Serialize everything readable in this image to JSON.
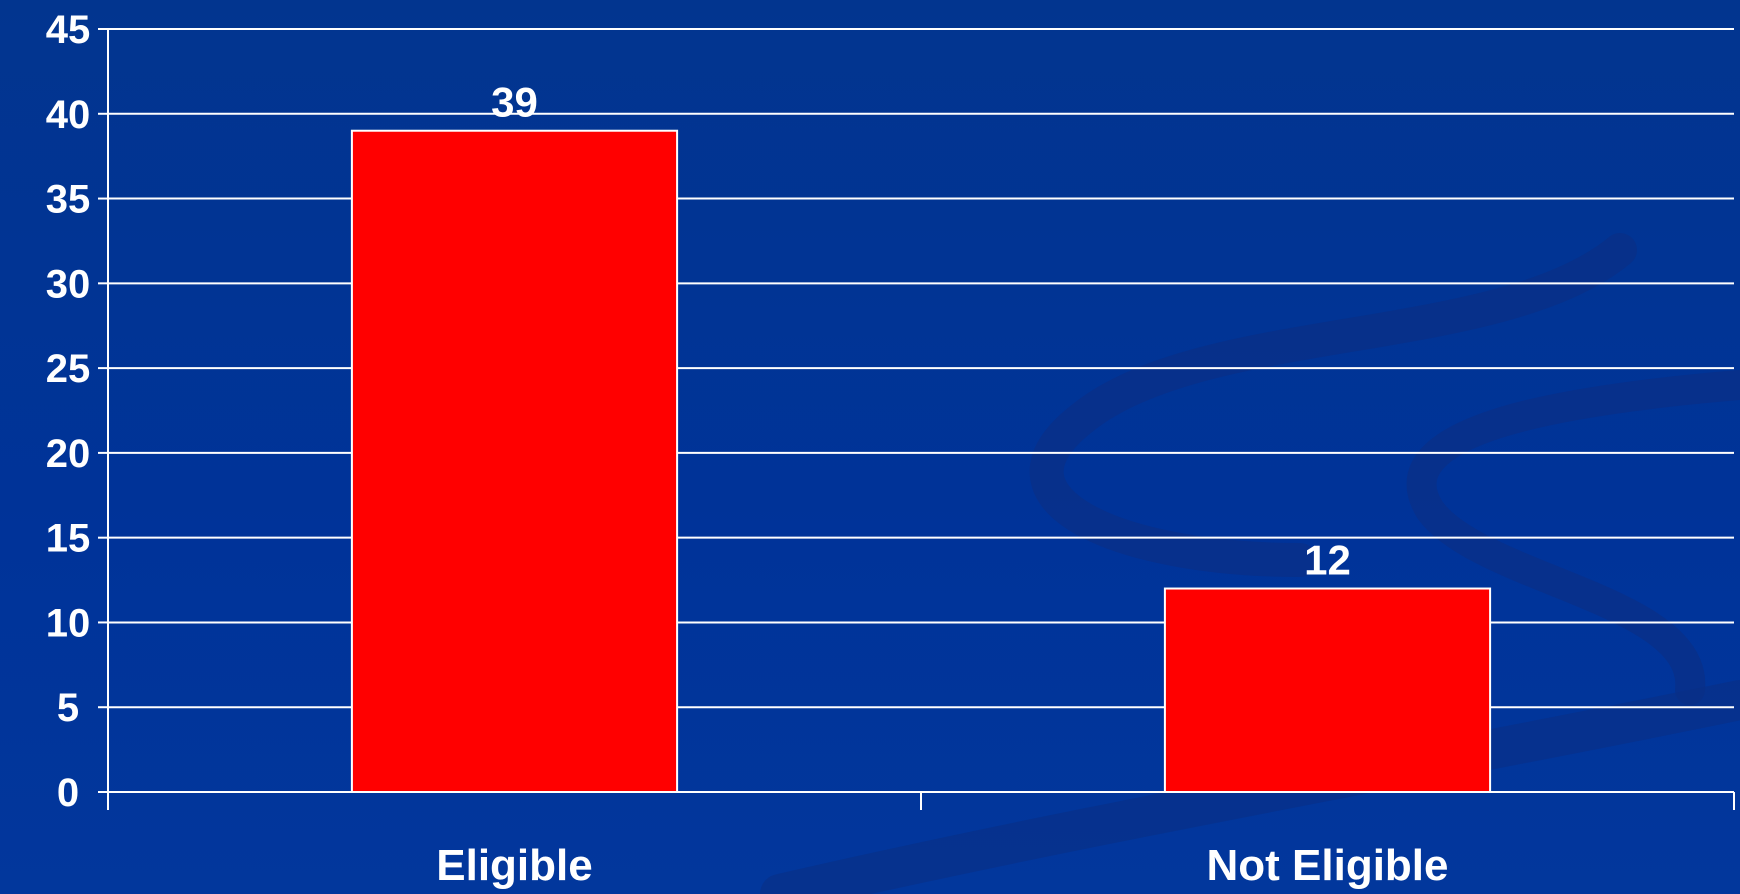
{
  "chart_data": {
    "type": "bar",
    "categories": [
      "Eligible",
      "Not Eligible"
    ],
    "values": [
      39,
      12
    ],
    "data_labels": [
      "39",
      "12"
    ],
    "title": "",
    "xlabel": "",
    "ylabel": "",
    "ylim": [
      0,
      45
    ],
    "y_ticks": [
      0,
      5,
      10,
      15,
      20,
      25,
      30,
      35,
      40,
      45
    ],
    "y_tick_labels": [
      "0",
      "5",
      "10",
      "15",
      "20",
      "25",
      "30",
      "35",
      "40",
      "45"
    ],
    "grid": true,
    "legend": "none"
  },
  "colors": {
    "background": "#003399",
    "bar_fill": "#ff0000",
    "bar_stroke": "#ffffff",
    "gridline": "#ffffff",
    "text": "#ffffff",
    "decoration": "#0a2f86"
  }
}
